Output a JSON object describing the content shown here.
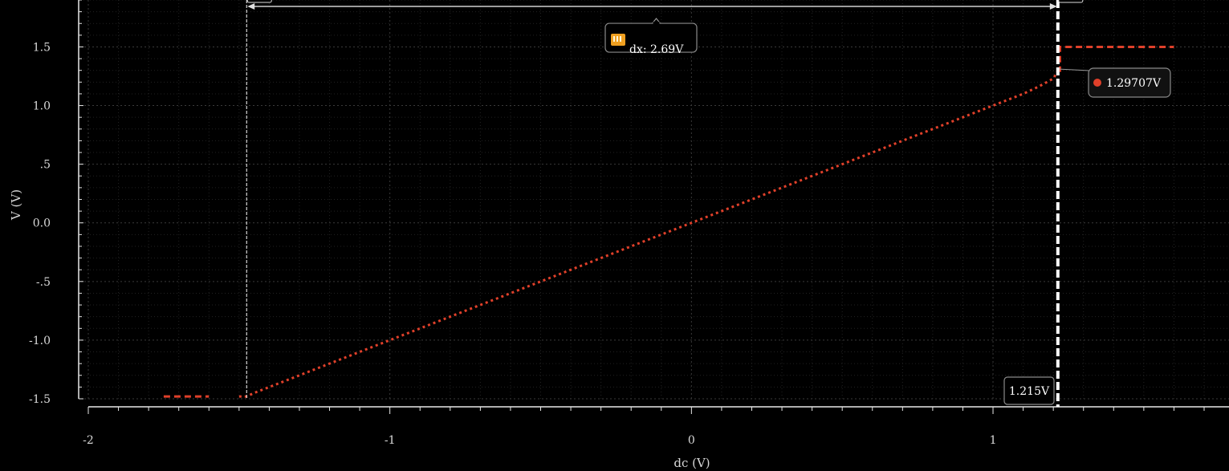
{
  "chart_data": {
    "type": "line",
    "title": "",
    "xlabel": "dc (V)",
    "ylabel": "V (V)",
    "xlim": [
      -2,
      1.7
    ],
    "ylim": [
      -1.5,
      1.9
    ],
    "x_ticks": [
      {
        "value": -2,
        "label": "-2"
      },
      {
        "value": -1,
        "label": "-1"
      },
      {
        "value": 0,
        "label": "0"
      },
      {
        "value": 1,
        "label": "1"
      }
    ],
    "y_ticks": [
      {
        "value": 1.5,
        "label": "1.5"
      },
      {
        "value": 1.0,
        "label": "1.0"
      },
      {
        "value": 0.5,
        "label": ".5"
      },
      {
        "value": 0.0,
        "label": "0.0"
      },
      {
        "value": -0.5,
        "label": "-.5"
      },
      {
        "value": -1.0,
        "label": "-1.0"
      },
      {
        "value": -1.5,
        "label": "-1.5"
      }
    ],
    "grid": true,
    "series": [
      {
        "color": "#e0402a",
        "style": "dotted",
        "x": [
          -1.5,
          -1.475,
          -1.45,
          -1.4,
          -1.3,
          -1.2,
          -1.0,
          -0.8,
          -0.6,
          -0.4,
          -0.2,
          0.0,
          0.2,
          0.4,
          0.6,
          0.8,
          1.0,
          1.1,
          1.15,
          1.2,
          1.215
        ],
        "y": [
          -1.48,
          -1.48,
          -1.45,
          -1.4,
          -1.3,
          -1.2,
          -1.0,
          -0.8,
          -0.6,
          -0.4,
          -0.2,
          0.0,
          0.2,
          0.4,
          0.6,
          0.8,
          1.0,
          1.1,
          1.16,
          1.23,
          1.297
        ]
      }
    ],
    "clip_segments": [
      {
        "color": "#e0402a",
        "style": "dashed",
        "x": [
          -1.75,
          -1.6
        ],
        "y": [
          -1.48,
          -1.48
        ]
      },
      {
        "color": "#e0402a",
        "style": "dashed",
        "x": [
          1.215,
          1.222,
          1.222,
          1.6
        ],
        "y": [
          1.297,
          1.297,
          1.5,
          1.5
        ]
      }
    ],
    "markers": {
      "cursor_a": {
        "x": -1.475,
        "color": "#ffffff"
      },
      "cursor_b": {
        "x": 1.215,
        "label": "1.215V",
        "color": "#ffffff"
      },
      "delta": {
        "label": "dx: 2.69V",
        "y": 1.845
      },
      "point": {
        "x": 1.215,
        "y": 1.297,
        "label": "1.29707V",
        "color": "#e0402a"
      }
    }
  }
}
